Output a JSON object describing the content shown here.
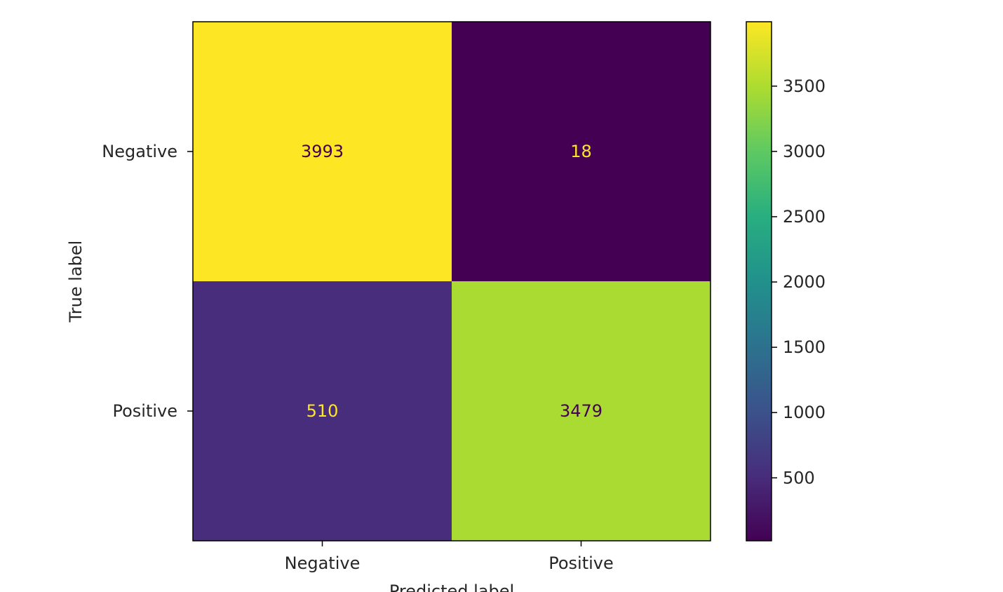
{
  "chart_data": {
    "type": "heatmap",
    "title": "",
    "xlabel": "Predicted label",
    "ylabel": "True label",
    "x_categories": [
      "Negative",
      "Positive"
    ],
    "y_categories": [
      "Negative",
      "Positive"
    ],
    "values": [
      [
        3993,
        18
      ],
      [
        510,
        3479
      ]
    ],
    "colormap": "viridis",
    "colorbar": {
      "range": [
        18,
        3993
      ],
      "ticks": [
        500,
        1000,
        1500,
        2000,
        2500,
        3000,
        3500
      ],
      "tick_labels": [
        "500",
        "1000",
        "1500",
        "2000",
        "2500",
        "3000",
        "3500"
      ]
    },
    "grid": false,
    "text_colors": {
      "light_cells": "#440154",
      "dark_cells": "#fde725"
    }
  }
}
